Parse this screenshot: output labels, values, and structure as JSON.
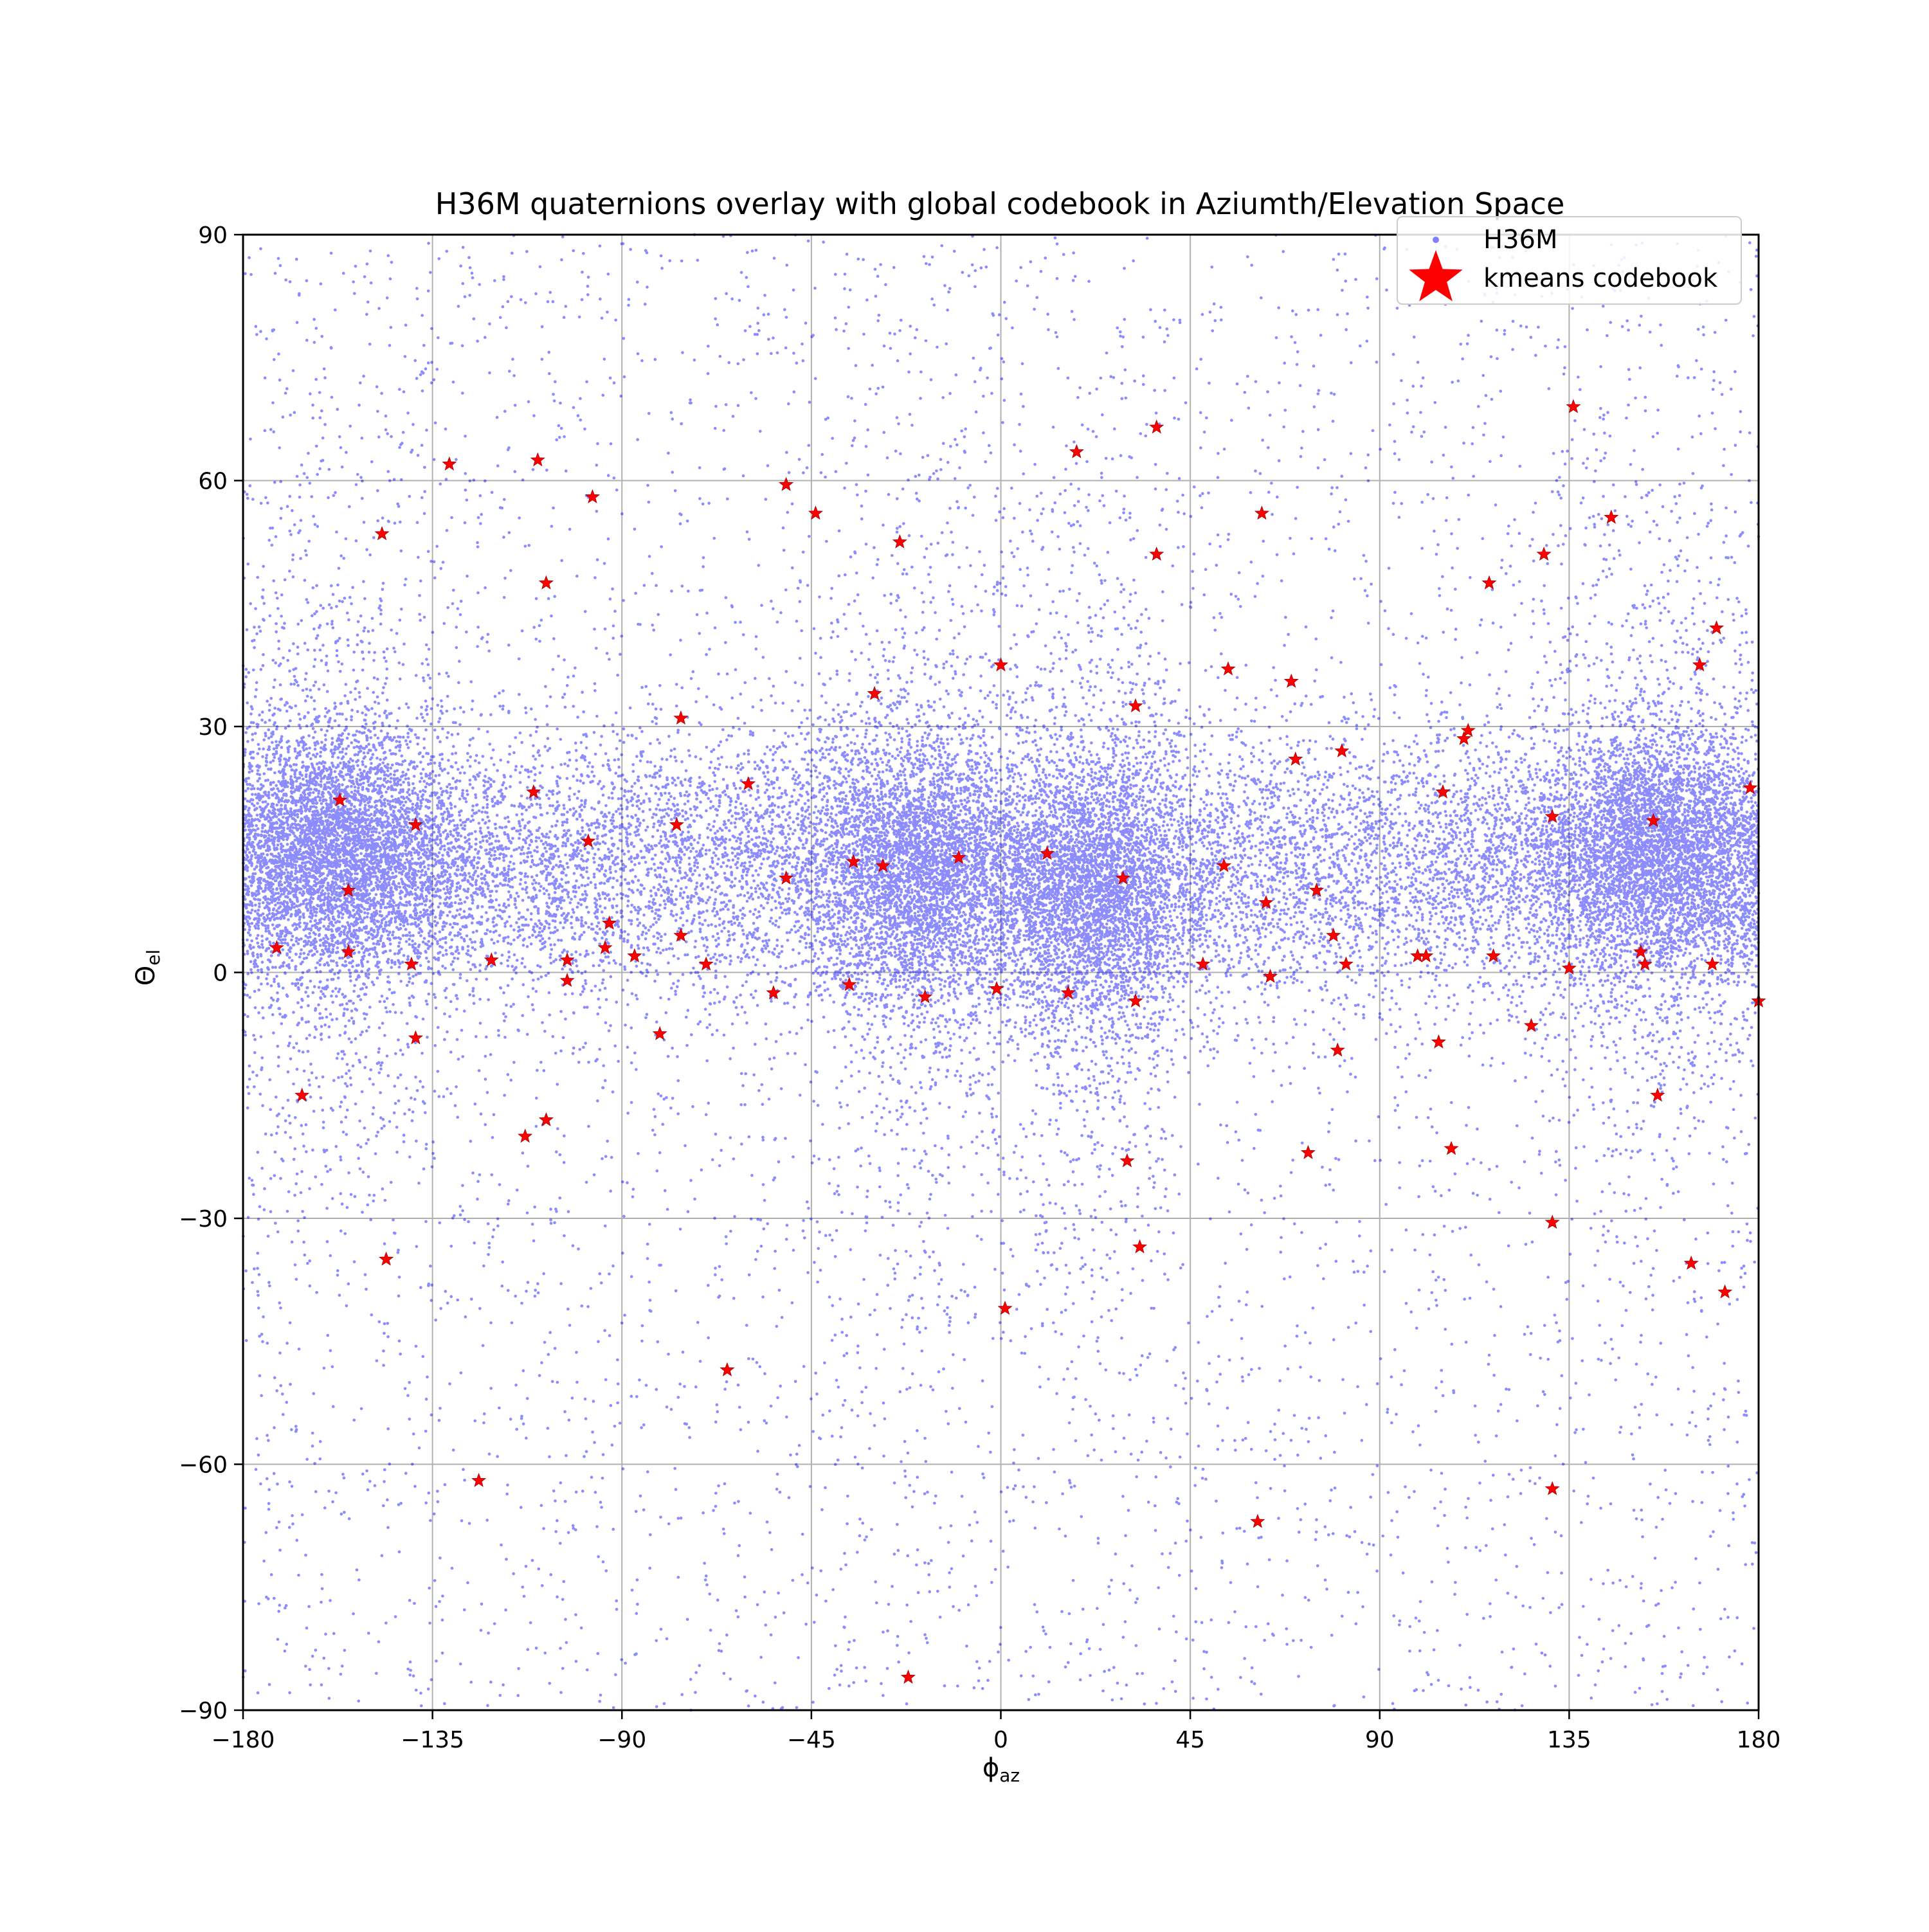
{
  "chart_data": {
    "type": "scatter",
    "title": "H36M quaternions overlay with global codebook in Aziumth/Elevation Space",
    "xlabel": "ϕaz",
    "xlabel_main": "ϕ",
    "xlabel_sub": "az",
    "ylabel": "Θel",
    "ylabel_main": "Θ",
    "ylabel_sub": "el",
    "xlim": [
      -180,
      180
    ],
    "ylim": [
      -90,
      90
    ],
    "xticks": [
      -180,
      -135,
      -90,
      -45,
      0,
      45,
      90,
      135,
      180
    ],
    "yticks": [
      -90,
      -60,
      -30,
      0,
      30,
      60,
      90
    ],
    "xtick_labels": [
      "−180",
      "−135",
      "−90",
      "−45",
      "0",
      "45",
      "90",
      "135",
      "180"
    ],
    "ytick_labels": [
      "−90",
      "−60",
      "−30",
      "0",
      "30",
      "60",
      "90"
    ],
    "grid": true,
    "legend_position": "top-right",
    "series": [
      {
        "name": "H36M",
        "color": "#0000ff",
        "marker": "dot",
        "description_of_distribution": "dense band around elevation 0 to 25 with clusters near azimuth -157, -20, 22, 155",
        "clusters": [
          {
            "center": [
              -157,
              15
            ],
            "spread": [
              14,
              7
            ],
            "weight": 0.2
          },
          {
            "center": [
              -20,
              12
            ],
            "spread": [
              13,
              8
            ],
            "weight": 0.17
          },
          {
            "center": [
              22,
              9
            ],
            "spread": [
              12,
              8
            ],
            "weight": 0.17
          },
          {
            "center": [
              155,
              15
            ],
            "spread": [
              14,
              7
            ],
            "weight": 0.2
          }
        ]
      },
      {
        "name": "kmeans codebook",
        "color": "#ff0000",
        "marker": "star",
        "points": [
          [
            -157,
            21
          ],
          [
            -155,
            10
          ],
          [
            -155,
            2.5
          ],
          [
            -172,
            3
          ],
          [
            -166,
            -15
          ],
          [
            -147,
            53.5
          ],
          [
            -146,
            -35
          ],
          [
            -139,
            18
          ],
          [
            -139,
            -8
          ],
          [
            -140,
            1
          ],
          [
            -131,
            62
          ],
          [
            -124,
            -62
          ],
          [
            -121,
            1.5
          ],
          [
            -110,
            62.5
          ],
          [
            -111,
            22
          ],
          [
            -113,
            -20
          ],
          [
            -108,
            -18
          ],
          [
            -108,
            47.5
          ],
          [
            -103,
            1.5
          ],
          [
            -103,
            -1
          ],
          [
            -98,
            16
          ],
          [
            -97,
            58
          ],
          [
            -94,
            3
          ],
          [
            -93,
            6
          ],
          [
            -87,
            2
          ],
          [
            -81,
            -7.5
          ],
          [
            -76,
            31
          ],
          [
            -77,
            18
          ],
          [
            -76,
            4.5
          ],
          [
            -70,
            1
          ],
          [
            -60,
            23
          ],
          [
            -54,
            -2.5
          ],
          [
            -51,
            59.5
          ],
          [
            -51,
            11.5
          ],
          [
            -65,
            -48.5
          ],
          [
            -44,
            56
          ],
          [
            -35,
            13.5
          ],
          [
            -36,
            -1.5
          ],
          [
            -30,
            34
          ],
          [
            -28,
            13
          ],
          [
            -24,
            52.5
          ],
          [
            -18,
            -3
          ],
          [
            -22,
            -86
          ],
          [
            -10,
            14
          ],
          [
            0,
            37.5
          ],
          [
            -1,
            -2
          ],
          [
            1,
            -41
          ],
          [
            11,
            14.5
          ],
          [
            16,
            -2.5
          ],
          [
            18,
            63.5
          ],
          [
            29,
            11.5
          ],
          [
            30,
            -23
          ],
          [
            32,
            32.5
          ],
          [
            32,
            -3.5
          ],
          [
            33,
            -33.5
          ],
          [
            37,
            66.5
          ],
          [
            37,
            51
          ],
          [
            48,
            1
          ],
          [
            53,
            13
          ],
          [
            54,
            37
          ],
          [
            62,
            56
          ],
          [
            63,
            8.5
          ],
          [
            64,
            -0.5
          ],
          [
            61,
            -67
          ],
          [
            69,
            35.5
          ],
          [
            70,
            26
          ],
          [
            73,
            -22
          ],
          [
            75,
            10
          ],
          [
            79,
            4.5
          ],
          [
            80,
            -9.5
          ],
          [
            81,
            27
          ],
          [
            82,
            1
          ],
          [
            99,
            2
          ],
          [
            101,
            2
          ],
          [
            104,
            -8.5
          ],
          [
            105,
            22
          ],
          [
            107,
            -21.5
          ],
          [
            110,
            28.5
          ],
          [
            111,
            29.5
          ],
          [
            116,
            47.5
          ],
          [
            117,
            2
          ],
          [
            126,
            -6.5
          ],
          [
            129,
            51
          ],
          [
            131,
            19
          ],
          [
            131,
            -30.5
          ],
          [
            131,
            -63
          ],
          [
            136,
            69
          ],
          [
            135,
            0.5
          ],
          [
            145,
            55.5
          ],
          [
            152,
            2.5
          ],
          [
            153,
            1
          ],
          [
            155,
            18.5
          ],
          [
            156,
            -15
          ],
          [
            164,
            -35.5
          ],
          [
            166,
            37.5
          ],
          [
            169,
            1
          ],
          [
            170,
            42
          ],
          [
            172,
            -39
          ],
          [
            178,
            22.5
          ],
          [
            180,
            -3.5
          ]
        ]
      }
    ]
  }
}
